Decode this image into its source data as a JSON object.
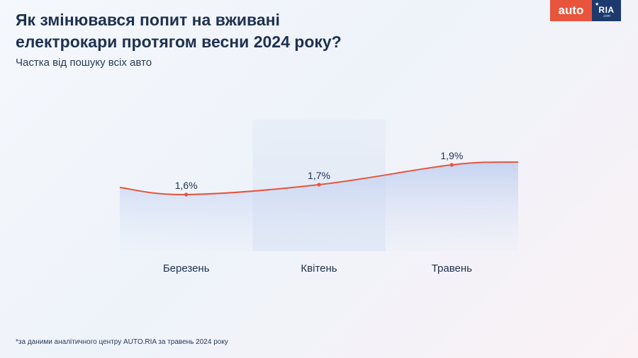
{
  "header": {
    "title": "Як змінювався попит на вживані\nелектрокари протягом весни 2024 року?",
    "subtitle": "Частка від пошуку всіх авто"
  },
  "logo": {
    "part1": "auto",
    "part2": "RIA",
    "part3": ".com",
    "colors": {
      "auto_bg": "#e8543c",
      "ria_bg": "#1c3a6e"
    }
  },
  "footnote": "*за даними аналітичного центру AUTO.RIA за травень 2024 року",
  "chart_data": {
    "type": "area",
    "title": "Як змінювався попит на вживані електрокари протягом весни 2024 року?",
    "subtitle": "Частка від пошуку всіх авто",
    "categories": [
      "Березень",
      "Квітень",
      "Травень"
    ],
    "values": [
      1.6,
      1.7,
      1.9
    ],
    "value_labels": [
      "1,6%",
      "1,7%",
      "1,9%"
    ],
    "grid": false,
    "legend": "none",
    "colors": {
      "line": "#e5553d",
      "area": "#c9d6f2",
      "band": "#e3ebf6",
      "text": "#1f3150"
    }
  }
}
